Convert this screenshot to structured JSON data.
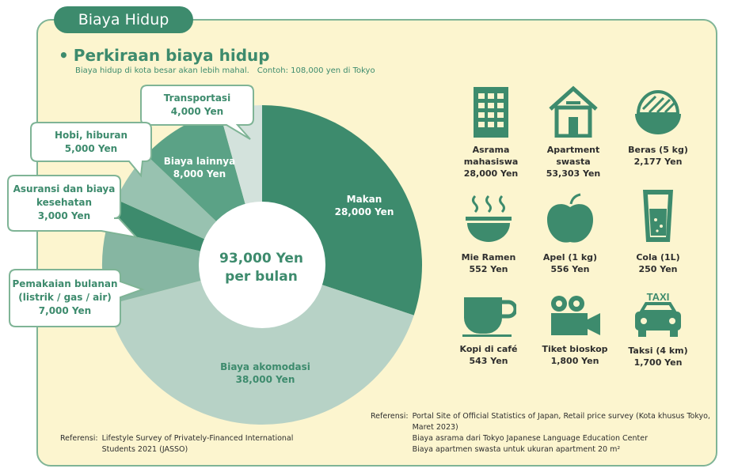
{
  "tab_label": "Biaya Hidup",
  "section": {
    "bullet": "•",
    "title": "Perkiraan biaya hidup",
    "subtitle": "Biaya hidup di kota besar akan lebih mahal.",
    "example": "Contoh: 108,000 yen di Tokyo"
  },
  "chart_data": {
    "type": "pie",
    "title": "Perkiraan biaya hidup",
    "total_label_line1": "93,000 Yen",
    "total_label_line2": "per bulan",
    "unit": "Yen",
    "slices": [
      {
        "name": "Makan",
        "value": 28000,
        "value_label": "28,000 Yen",
        "color": "#3d8b6d"
      },
      {
        "name": "Biaya akomodasi",
        "value": 38000,
        "value_label": "38,000 Yen",
        "color": "#b7d2c6"
      },
      {
        "name": "Pemakaian bulanan (listrik / gas / air)",
        "value": 7000,
        "value_label": "7,000 Yen",
        "color": "#86b6a2"
      },
      {
        "name": "Asuransi dan biaya kesehatan",
        "value": 3000,
        "value_label": "3,000 Yen",
        "color": "#3d8b6d"
      },
      {
        "name": "Hobi, hiburan",
        "value": 5000,
        "value_label": "5,000 Yen",
        "color": "#98c2b0"
      },
      {
        "name": "Biaya lainnya",
        "value": 8000,
        "value_label": "8,000 Yen",
        "color": "#5ba286"
      },
      {
        "name": "Transportasi",
        "value": 4000,
        "value_label": "4,000 Yen",
        "color": "#d3e2dc"
      }
    ],
    "callouts": {
      "transport": {
        "line1": "Transportasi",
        "line2": "4,000 Yen"
      },
      "hobi": {
        "line1": "Hobi, hiburan",
        "line2": "5,000 Yen"
      },
      "asuransi": {
        "line1": "Asuransi dan biaya",
        "line2": "kesehatan",
        "line3": "3,000 Yen"
      },
      "pemakaian": {
        "line1": "Pemakaian bulanan",
        "line2": "(listrik / gas / air)",
        "line3": "7,000 Yen"
      }
    },
    "inner": {
      "makan": {
        "line1": "Makan",
        "line2": "28,000 Yen"
      },
      "akomodasi": {
        "line1": "Biaya akomodasi",
        "line2": "38,000 Yen"
      },
      "lainnya": {
        "line1": "Biaya lainnya",
        "line2": "8,000 Yen"
      }
    }
  },
  "items": [
    {
      "icon": "building-icon",
      "line1": "Asrama",
      "line2": "mahasiswa",
      "price": "28,000 Yen"
    },
    {
      "icon": "house-icon",
      "line1": "Apartment",
      "line2": "swasta",
      "price": "53,303 Yen"
    },
    {
      "icon": "rice-bowl-icon",
      "line1": "Beras (5 kg)",
      "price": "2,177 Yen"
    },
    {
      "icon": "ramen-bowl-icon",
      "line1": "Mie Ramen",
      "price": "552 Yen"
    },
    {
      "icon": "apple-icon",
      "line1": "Apel (1 kg)",
      "price": "556 Yen"
    },
    {
      "icon": "soda-glass-icon",
      "line1": "Cola (1L)",
      "price": "250 Yen"
    },
    {
      "icon": "coffee-cup-icon",
      "line1": "Kopi di café",
      "price": "543 Yen"
    },
    {
      "icon": "movie-camera-icon",
      "line1": "Tiket bioskop",
      "price": "1,800 Yen"
    },
    {
      "icon": "taxi-icon",
      "line1": "Taksi (4 km)",
      "price": "1,700 Yen",
      "badge": "TAXI"
    }
  ],
  "references": {
    "left": {
      "label": "Referensi:",
      "line1": "Lifestyle Survey of Privately-Financed International",
      "line2": "Students 2021 (JASSO)"
    },
    "right": {
      "label": "Referensi:",
      "line1": "Portal Site of Official Statistics of Japan, Retail price survey (Kota khusus Tokyo,",
      "line2": "Maret 2023)",
      "line3": "Biaya asrama dari Tokyo Japanese Language Education Center",
      "line4": "Biaya apartmen swasta untuk ukuran apartment 20 m²"
    }
  },
  "colors": {
    "brand": "#3d8b6d",
    "panel": "#fcf5cf",
    "border": "#7fb496"
  }
}
